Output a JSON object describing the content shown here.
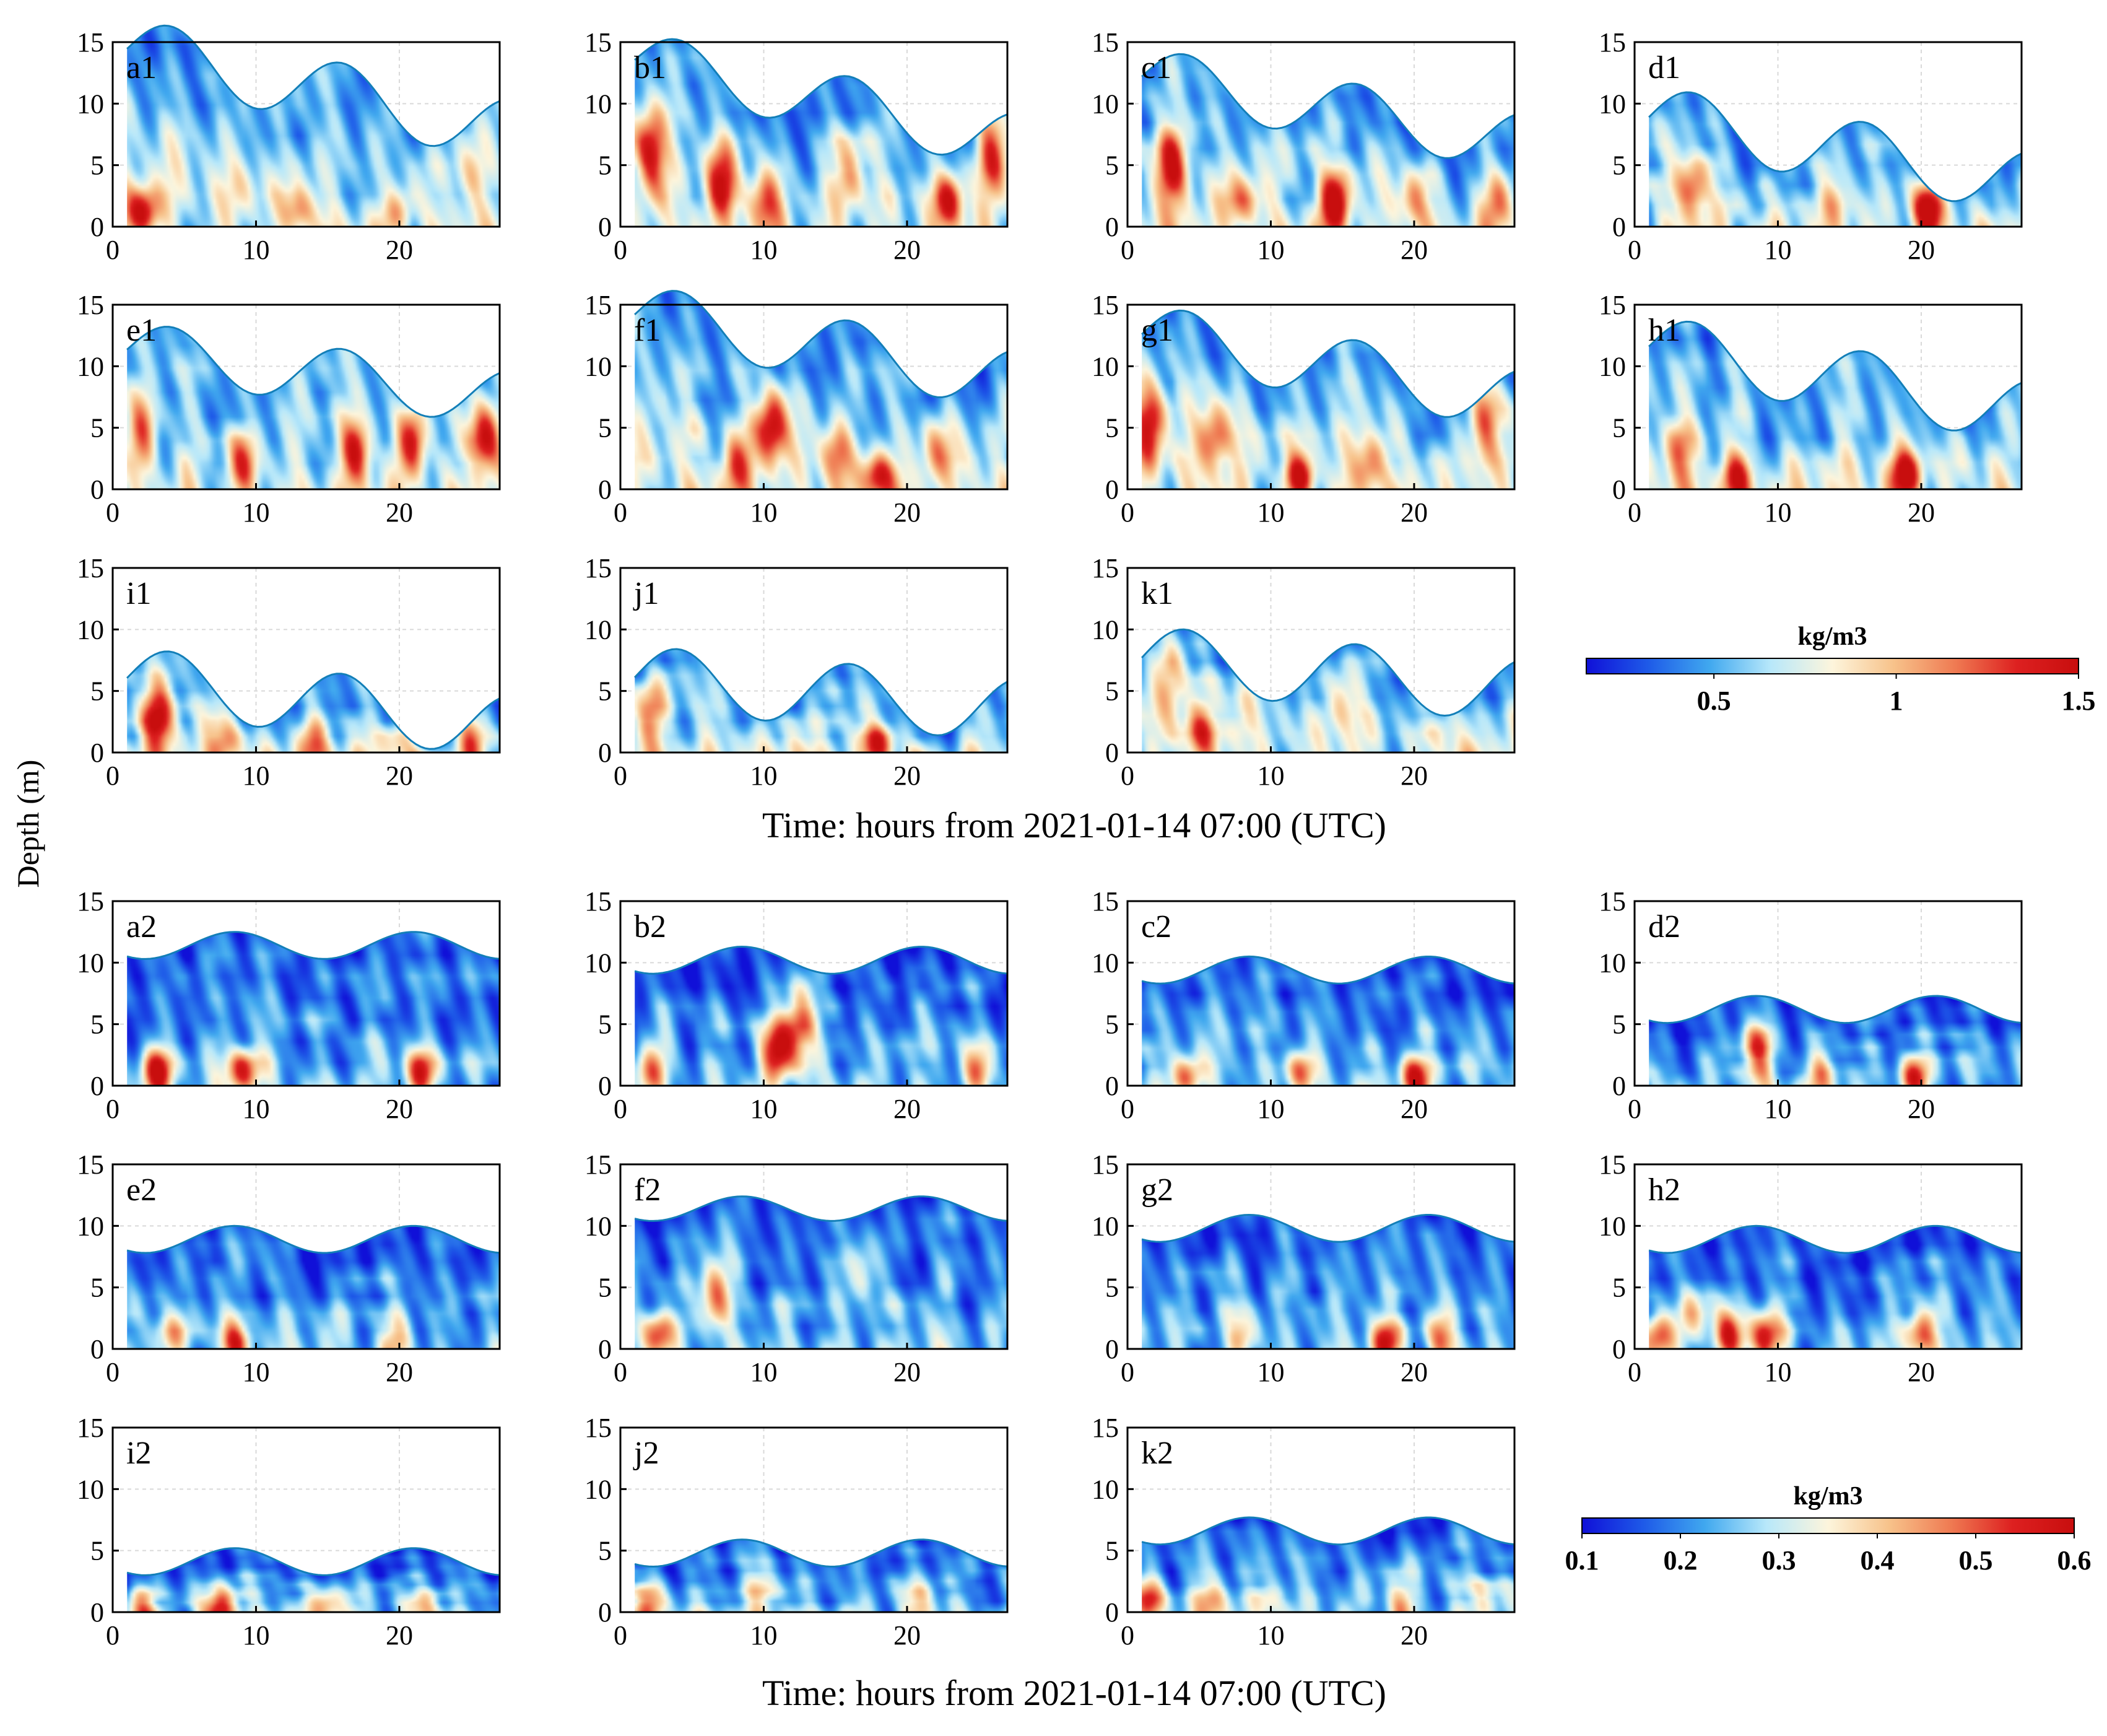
{
  "figure": {
    "ylabel": "Depth (m)",
    "xlabel_top": "Time: hours from 2021-01-14 07:00 (UTC)",
    "xlabel_bottom": "Time: hours from 2021-01-14 07:00 (UTC)"
  },
  "colorbars": [
    {
      "label": "kg/m3",
      "range": [
        0.15,
        1.5
      ],
      "ticks": [
        0.5,
        1,
        1.5
      ],
      "tick_labels": [
        "0.5",
        "1",
        "1.5"
      ]
    },
    {
      "label": "kg/m3",
      "range": [
        0.1,
        0.6
      ],
      "ticks": [
        0.1,
        0.2,
        0.3,
        0.4,
        0.5,
        0.6
      ],
      "tick_labels": [
        "0.1",
        "0.2",
        "0.3",
        "0.4",
        "0.5",
        "0.6"
      ]
    }
  ],
  "colors": {
    "scale": [
      "#1010d8",
      "#1e5ae8",
      "#40a8ef",
      "#b8e8fa",
      "#fdf5dc",
      "#f7c28a",
      "#ef7a52",
      "#dd2020",
      "#c80e0e"
    ],
    "surface_line": "#137fb8",
    "axis": "#000000",
    "grid": "#d9d9d9"
  },
  "chart_data": [
    {
      "type": "heatmap",
      "panel": "a1",
      "group": 1,
      "xlim": [
        0,
        27
      ],
      "ylim": [
        0,
        15
      ],
      "xticks": [
        0,
        10,
        20
      ],
      "yticks": [
        0,
        5,
        10,
        15
      ],
      "t_start": 1,
      "t_end": 27,
      "surface_mean": 11.2,
      "surface_amp": 2.6,
      "surface_trend": -0.25,
      "peaks": [
        4,
        16
      ],
      "hot_spots": [
        [
          2,
          1,
          0.9
        ],
        [
          9,
          3,
          0.35
        ],
        [
          13,
          1,
          0.5
        ],
        [
          20,
          1,
          0.4
        ],
        [
          25,
          4,
          0.35
        ]
      ],
      "seed": 1,
      "xlabel": "",
      "ylabel": ""
    },
    {
      "type": "heatmap",
      "panel": "b1",
      "group": 1,
      "xlim": [
        0,
        27
      ],
      "ylim": [
        0,
        15
      ],
      "xticks": [
        0,
        10,
        20
      ],
      "yticks": [
        0,
        5,
        10,
        15
      ],
      "t_start": 1,
      "t_end": 27,
      "surface_mean": 10.3,
      "surface_amp": 2.4,
      "surface_trend": -0.25,
      "peaks": [
        4,
        16
      ],
      "hot_spots": [
        [
          2,
          6,
          0.95
        ],
        [
          7,
          4,
          0.85
        ],
        [
          10,
          2,
          0.6
        ],
        [
          16,
          4,
          0.6
        ],
        [
          23,
          2,
          0.8
        ],
        [
          26,
          6,
          0.7
        ]
      ],
      "seed": 2,
      "xlabel": "",
      "ylabel": ""
    },
    {
      "type": "heatmap",
      "panel": "c1",
      "group": 1,
      "xlim": [
        0,
        27
      ],
      "ylim": [
        0,
        15
      ],
      "xticks": [
        0,
        10,
        20
      ],
      "yticks": [
        0,
        5,
        10,
        15
      ],
      "t_start": 1,
      "t_end": 27,
      "surface_mean": 9.6,
      "surface_amp": 2.4,
      "surface_trend": -0.2,
      "peaks": [
        4,
        16
      ],
      "hot_spots": [
        [
          3,
          5,
          0.7
        ],
        [
          8,
          2,
          0.5
        ],
        [
          14.5,
          2,
          0.95
        ],
        [
          20,
          2,
          0.5
        ],
        [
          26,
          2,
          0.6
        ]
      ],
      "seed": 3,
      "xlabel": "",
      "ylabel": ""
    },
    {
      "type": "heatmap",
      "panel": "d1",
      "group": 1,
      "xlim": [
        0,
        27
      ],
      "ylim": [
        0,
        15
      ],
      "xticks": [
        0,
        10,
        20
      ],
      "yticks": [
        0,
        5,
        10,
        15
      ],
      "t_start": 1,
      "t_end": 27,
      "surface_mean": 6.3,
      "surface_amp": 2.6,
      "surface_trend": -0.2,
      "peaks": [
        4,
        16
      ],
      "hot_spots": [
        [
          4,
          3,
          0.7
        ],
        [
          20.5,
          1.5,
          0.95
        ],
        [
          14,
          2,
          0.25
        ]
      ],
      "seed": 4,
      "xlabel": "",
      "ylabel": ""
    },
    {
      "type": "heatmap",
      "panel": "e1",
      "group": 1,
      "xlim": [
        0,
        27
      ],
      "ylim": [
        0,
        15
      ],
      "xticks": [
        0,
        10,
        20
      ],
      "yticks": [
        0,
        5,
        10,
        15
      ],
      "t_start": 1,
      "t_end": 27,
      "surface_mean": 9.4,
      "surface_amp": 2.3,
      "surface_trend": -0.15,
      "peaks": [
        4,
        16
      ],
      "hot_spots": [
        [
          2,
          5,
          0.6
        ],
        [
          9,
          2,
          0.6
        ],
        [
          17,
          3,
          0.75
        ],
        [
          21,
          4,
          0.7
        ],
        [
          26,
          4,
          0.95
        ]
      ],
      "seed": 5,
      "xlabel": "",
      "ylabel": ""
    },
    {
      "type": "heatmap",
      "panel": "f1",
      "group": 1,
      "xlim": [
        0,
        27
      ],
      "ylim": [
        0,
        15
      ],
      "xticks": [
        0,
        10,
        20
      ],
      "yticks": [
        0,
        5,
        10,
        15
      ],
      "t_start": 1,
      "t_end": 27,
      "surface_mean": 11.6,
      "surface_amp": 2.5,
      "surface_trend": -0.2,
      "peaks": [
        4,
        16
      ],
      "hot_spots": [
        [
          8,
          2,
          0.55
        ],
        [
          10.5,
          5,
          0.95
        ],
        [
          15,
          3,
          0.6
        ],
        [
          18,
          1,
          0.85
        ],
        [
          22,
          3,
          0.5
        ]
      ],
      "seed": 6,
      "xlabel": "",
      "ylabel": ""
    },
    {
      "type": "heatmap",
      "panel": "g1",
      "group": 1,
      "xlim": [
        0,
        27
      ],
      "ylim": [
        0,
        15
      ],
      "xticks": [
        0,
        10,
        20
      ],
      "yticks": [
        0,
        5,
        10,
        15
      ],
      "t_start": 1,
      "t_end": 27,
      "surface_mean": 10.0,
      "surface_amp": 2.5,
      "surface_trend": -0.2,
      "peaks": [
        4,
        16
      ],
      "hot_spots": [
        [
          1.5,
          5,
          0.95
        ],
        [
          6,
          4,
          0.6
        ],
        [
          12,
          1,
          0.9
        ],
        [
          17,
          2,
          0.6
        ],
        [
          25,
          6,
          0.8
        ]
      ],
      "seed": 7,
      "xlabel": "",
      "ylabel": ""
    },
    {
      "type": "heatmap",
      "panel": "h1",
      "group": 1,
      "xlim": [
        0,
        27
      ],
      "ylim": [
        0,
        15
      ],
      "xticks": [
        0,
        10,
        20
      ],
      "yticks": [
        0,
        5,
        10,
        15
      ],
      "t_start": 1,
      "t_end": 27,
      "surface_mean": 9.0,
      "surface_amp": 2.6,
      "surface_trend": -0.2,
      "peaks": [
        4,
        16
      ],
      "hot_spots": [
        [
          3,
          3,
          0.45
        ],
        [
          7,
          1,
          0.7
        ],
        [
          19,
          1,
          0.9
        ]
      ],
      "seed": 8,
      "xlabel": "",
      "ylabel": ""
    },
    {
      "type": "heatmap",
      "panel": "i1",
      "group": 1,
      "xlim": [
        0,
        27
      ],
      "ylim": [
        0,
        15
      ],
      "xticks": [
        0,
        10,
        20
      ],
      "yticks": [
        0,
        5,
        10,
        15
      ],
      "t_start": 1,
      "t_end": 27,
      "surface_mean": 4.1,
      "surface_amp": 2.6,
      "surface_trend": -0.15,
      "peaks": [
        4,
        16
      ],
      "hot_spots": [
        [
          3,
          3,
          0.95
        ],
        [
          8,
          1,
          0.55
        ],
        [
          14,
          1,
          0.5
        ],
        [
          20,
          1,
          0.45
        ],
        [
          25,
          1,
          0.45
        ]
      ],
      "seed": 9,
      "xlabel": "",
      "ylabel": ""
    },
    {
      "type": "heatmap",
      "panel": "j1",
      "group": 1,
      "xlim": [
        0,
        27
      ],
      "ylim": [
        0,
        15
      ],
      "xticks": [
        0,
        10,
        20
      ],
      "yticks": [
        0,
        5,
        10,
        15
      ],
      "t_start": 1,
      "t_end": 27,
      "surface_mean": 4.8,
      "surface_amp": 2.6,
      "surface_trend": -0.1,
      "peaks": [
        4,
        16
      ],
      "hot_spots": [
        [
          2,
          3,
          0.5
        ],
        [
          18,
          0.5,
          0.8
        ],
        [
          12,
          1,
          0.3
        ]
      ],
      "seed": 10,
      "xlabel": "",
      "ylabel": ""
    },
    {
      "type": "heatmap",
      "panel": "k1",
      "group": 1,
      "xlim": [
        0,
        27
      ],
      "ylim": [
        0,
        15
      ],
      "xticks": [
        0,
        10,
        20
      ],
      "yticks": [
        0,
        5,
        10,
        15
      ],
      "t_start": 1,
      "t_end": 27,
      "surface_mean": 6.4,
      "surface_amp": 2.6,
      "surface_trend": -0.1,
      "peaks": [
        4,
        16
      ],
      "hot_spots": [
        [
          3,
          6,
          0.5
        ],
        [
          5,
          2,
          0.6
        ],
        [
          8,
          3,
          0.4
        ],
        [
          15,
          4,
          0.35
        ],
        [
          22,
          2,
          0.3
        ]
      ],
      "seed": 11,
      "xlabel": "",
      "ylabel": ""
    },
    {
      "type": "heatmap",
      "panel": "a2",
      "group": 2,
      "xlim": [
        0,
        27
      ],
      "ylim": [
        0,
        15
      ],
      "xticks": [
        0,
        10,
        20
      ],
      "yticks": [
        0,
        5,
        10,
        15
      ],
      "t_start": 1,
      "t_end": 27,
      "surface_mean": 11.4,
      "surface_amp": 1.1,
      "surface_trend": 0,
      "peaks": [
        8.5,
        21
      ],
      "hot_spots": [
        [
          3,
          1,
          0.95
        ],
        [
          9,
          1,
          0.9
        ],
        [
          21.5,
          1,
          0.85
        ]
      ],
      "seed": 21,
      "xlabel": "",
      "ylabel": ""
    },
    {
      "type": "heatmap",
      "panel": "b2",
      "group": 2,
      "xlim": [
        0,
        27
      ],
      "ylim": [
        0,
        15
      ],
      "xticks": [
        0,
        10,
        20
      ],
      "yticks": [
        0,
        5,
        10,
        15
      ],
      "t_start": 1,
      "t_end": 27,
      "surface_mean": 10.2,
      "surface_amp": 1.1,
      "surface_trend": 0,
      "peaks": [
        8.5,
        21
      ],
      "hot_spots": [
        [
          2,
          1,
          0.6
        ],
        [
          11,
          3,
          0.95
        ],
        [
          12.5,
          5,
          0.8
        ],
        [
          25,
          1,
          0.55
        ]
      ],
      "seed": 22,
      "xlabel": "",
      "ylabel": ""
    },
    {
      "type": "heatmap",
      "panel": "c2",
      "group": 2,
      "xlim": [
        0,
        27
      ],
      "ylim": [
        0,
        15
      ],
      "xticks": [
        0,
        10,
        20
      ],
      "yticks": [
        0,
        5,
        10,
        15
      ],
      "t_start": 1,
      "t_end": 27,
      "surface_mean": 9.4,
      "surface_amp": 1.1,
      "surface_trend": 0,
      "peaks": [
        8.5,
        21
      ],
      "hot_spots": [
        [
          4,
          0.5,
          0.8
        ],
        [
          12,
          1,
          0.8
        ],
        [
          20,
          0.5,
          0.9
        ]
      ],
      "seed": 23,
      "xlabel": "",
      "ylabel": ""
    },
    {
      "type": "heatmap",
      "panel": "d2",
      "group": 2,
      "xlim": [
        0,
        27
      ],
      "ylim": [
        0,
        15
      ],
      "xticks": [
        0,
        10,
        20
      ],
      "yticks": [
        0,
        5,
        10,
        15
      ],
      "t_start": 1,
      "t_end": 27,
      "surface_mean": 6.2,
      "surface_amp": 1.1,
      "surface_trend": 0,
      "peaks": [
        8.5,
        21
      ],
      "hot_spots": [
        [
          8.5,
          3,
          0.7
        ],
        [
          19.5,
          0.5,
          0.9
        ],
        [
          13,
          1,
          0.4
        ]
      ],
      "seed": 24,
      "xlabel": "",
      "ylabel": ""
    },
    {
      "type": "heatmap",
      "panel": "e2",
      "group": 2,
      "xlim": [
        0,
        27
      ],
      "ylim": [
        0,
        15
      ],
      "xticks": [
        0,
        10,
        20
      ],
      "yticks": [
        0,
        5,
        10,
        15
      ],
      "t_start": 1,
      "t_end": 27,
      "surface_mean": 8.9,
      "surface_amp": 1.1,
      "surface_trend": 0,
      "peaks": [
        8.5,
        21
      ],
      "hot_spots": [
        [
          8.5,
          0.5,
          0.8
        ],
        [
          4,
          1,
          0.4
        ],
        [
          20,
          1,
          0.45
        ]
      ],
      "seed": 25,
      "xlabel": "",
      "ylabel": ""
    },
    {
      "type": "heatmap",
      "panel": "f2",
      "group": 2,
      "xlim": [
        0,
        27
      ],
      "ylim": [
        0,
        15
      ],
      "xticks": [
        0,
        10,
        20
      ],
      "yticks": [
        0,
        5,
        10,
        15
      ],
      "t_start": 1,
      "t_end": 27,
      "surface_mean": 11.4,
      "surface_amp": 1.0,
      "surface_trend": 0,
      "peaks": [
        8.5,
        21
      ],
      "hot_spots": [
        [
          2.5,
          1,
          0.85
        ],
        [
          6.5,
          4,
          0.75
        ],
        [
          17,
          7,
          0.3
        ]
      ],
      "seed": 26,
      "xlabel": "",
      "ylabel": ""
    },
    {
      "type": "heatmap",
      "panel": "g2",
      "group": 2,
      "xlim": [
        0,
        27
      ],
      "ylim": [
        0,
        15
      ],
      "xticks": [
        0,
        10,
        20
      ],
      "yticks": [
        0,
        5,
        10,
        15
      ],
      "t_start": 1,
      "t_end": 27,
      "surface_mean": 9.8,
      "surface_amp": 1.1,
      "surface_trend": 0,
      "peaks": [
        8.5,
        21
      ],
      "hot_spots": [
        [
          8,
          1,
          0.5
        ],
        [
          18,
          0.5,
          0.85
        ],
        [
          22,
          1,
          0.6
        ]
      ],
      "seed": 27,
      "xlabel": "",
      "ylabel": ""
    },
    {
      "type": "heatmap",
      "panel": "h2",
      "group": 2,
      "xlim": [
        0,
        27
      ],
      "ylim": [
        0,
        15
      ],
      "xticks": [
        0,
        10,
        20
      ],
      "yticks": [
        0,
        5,
        10,
        15
      ],
      "t_start": 1,
      "t_end": 27,
      "surface_mean": 8.9,
      "surface_amp": 1.1,
      "surface_trend": 0,
      "peaks": [
        8.5,
        21
      ],
      "hot_spots": [
        [
          1.5,
          1,
          0.85
        ],
        [
          4,
          3,
          0.5
        ],
        [
          6.5,
          1,
          0.9
        ],
        [
          9,
          1,
          0.85
        ],
        [
          20,
          1,
          0.8
        ]
      ],
      "seed": 28,
      "xlabel": "",
      "ylabel": ""
    },
    {
      "type": "heatmap",
      "panel": "i2",
      "group": 2,
      "xlim": [
        0,
        27
      ],
      "ylim": [
        0,
        15
      ],
      "xticks": [
        0,
        10,
        20
      ],
      "yticks": [
        0,
        5,
        10,
        15
      ],
      "t_start": 1,
      "t_end": 27,
      "surface_mean": 4.1,
      "surface_amp": 1.1,
      "surface_trend": 0,
      "peaks": [
        8.5,
        21
      ],
      "hot_spots": [
        [
          7.5,
          0.5,
          0.95
        ],
        [
          2,
          0.5,
          0.5
        ],
        [
          15,
          0.5,
          0.5
        ],
        [
          22,
          0.5,
          0.45
        ]
      ],
      "seed": 29,
      "xlabel": "",
      "ylabel": ""
    },
    {
      "type": "heatmap",
      "panel": "j2",
      "group": 2,
      "xlim": [
        0,
        27
      ],
      "ylim": [
        0,
        15
      ],
      "xticks": [
        0,
        10,
        20
      ],
      "yticks": [
        0,
        5,
        10,
        15
      ],
      "t_start": 1,
      "t_end": 27,
      "surface_mean": 4.8,
      "surface_amp": 1.1,
      "surface_trend": 0,
      "peaks": [
        8.5,
        21
      ],
      "hot_spots": [
        [
          2,
          1,
          0.55
        ],
        [
          10,
          2,
          0.4
        ],
        [
          21,
          1,
          0.35
        ]
      ],
      "seed": 30,
      "xlabel": "",
      "ylabel": ""
    },
    {
      "type": "heatmap",
      "panel": "k2",
      "group": 2,
      "xlim": [
        0,
        27
      ],
      "ylim": [
        0,
        15
      ],
      "xticks": [
        0,
        10,
        20
      ],
      "yticks": [
        0,
        5,
        10,
        15
      ],
      "t_start": 1,
      "t_end": 27,
      "surface_mean": 6.6,
      "surface_amp": 1.1,
      "surface_trend": 0,
      "peaks": [
        8.5,
        21
      ],
      "hot_spots": [
        [
          1.5,
          1,
          0.8
        ],
        [
          6,
          1,
          0.55
        ],
        [
          10,
          1,
          0.45
        ],
        [
          19,
          1,
          0.45
        ],
        [
          25,
          1,
          0.5
        ]
      ],
      "seed": 31,
      "xlabel": "",
      "ylabel": ""
    }
  ]
}
